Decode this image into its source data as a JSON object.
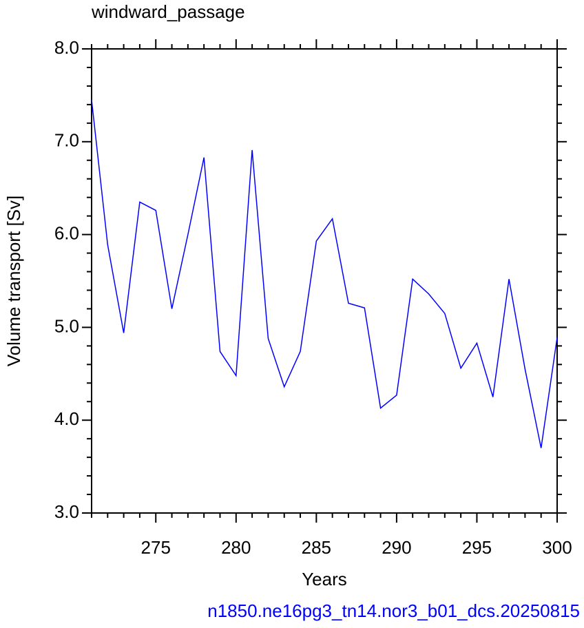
{
  "chart_data": {
    "type": "line",
    "title": "windward_passage",
    "xlabel": "Years",
    "ylabel": "Volume transport [Sv]",
    "footer": "n1850.ne16pg3_tn14.nor3_b01_dcs.20250815",
    "x": [
      271,
      272,
      273,
      274,
      275,
      276,
      277,
      278,
      279,
      280,
      281,
      282,
      283,
      284,
      285,
      286,
      287,
      288,
      289,
      290,
      291,
      292,
      293,
      294,
      295,
      296,
      297,
      298,
      299,
      300
    ],
    "series": [
      {
        "color": "#0000ff",
        "values": [
          7.45,
          5.89,
          4.94,
          6.35,
          6.26,
          5.2,
          6.0,
          6.83,
          4.74,
          4.48,
          6.91,
          4.88,
          4.36,
          4.74,
          5.93,
          6.17,
          5.26,
          5.21,
          4.13,
          4.27,
          5.52,
          5.36,
          5.15,
          4.56,
          4.83,
          4.25,
          5.52,
          4.55,
          3.7,
          4.89
        ]
      }
    ],
    "xlim": [
      271,
      300
    ],
    "xticks": [
      275,
      280,
      285,
      290,
      295,
      300
    ],
    "x_minor_ticks": [
      271,
      272,
      273,
      274,
      276,
      277,
      278,
      279,
      281,
      282,
      283,
      284,
      286,
      287,
      288,
      289,
      291,
      292,
      293,
      294,
      296,
      297,
      298,
      299
    ],
    "ylim": [
      3,
      8
    ],
    "yticks": [
      {
        "value": 3,
        "label": "3.0"
      },
      {
        "value": 4,
        "label": "4.0"
      },
      {
        "value": 5,
        "label": "5.0"
      },
      {
        "value": 6,
        "label": "6.0"
      },
      {
        "value": 7,
        "label": "7.0"
      },
      {
        "value": 8,
        "label": "8.0"
      }
    ],
    "y_minor_ticks": [
      3.2,
      3.4,
      3.6,
      3.8,
      4.2,
      4.4,
      4.6,
      4.8,
      5.2,
      5.4,
      5.6,
      5.8,
      6.2,
      6.4,
      6.6,
      6.8,
      7.2,
      7.4,
      7.6,
      7.8
    ],
    "grid": false
  }
}
